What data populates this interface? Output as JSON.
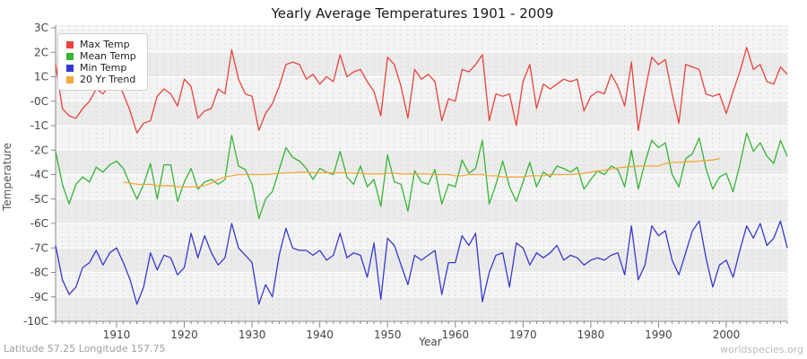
{
  "chart": {
    "title": "Yearly Average Temperatures 1901 - 2009",
    "y_axis_title": "Temperature",
    "x_axis_title": "Year",
    "footer_left": "Latitude 57.25 Longitude 157.75",
    "footer_right": "worldspecies.org"
  },
  "legend": {
    "items": [
      {
        "label": "Max Temp",
        "color": "#e8433c"
      },
      {
        "label": "Mean Temp",
        "color": "#36b436"
      },
      {
        "label": "Min Temp",
        "color": "#3838cf"
      },
      {
        "label": "20 Yr Trend",
        "color": "#f5a73e"
      }
    ]
  },
  "chart_data": {
    "type": "line",
    "title": "Yearly Average Temperatures 1901 - 2009",
    "xlabel": "Year",
    "ylabel": "Temperature",
    "x_range": [
      1901,
      2009
    ],
    "y_tick_labels": [
      "3C",
      "2C",
      "1C",
      "-0C",
      "-1C",
      "-2C",
      "-4C",
      "-5C",
      "-6C",
      "-7C",
      "-8C",
      "-9C",
      "-10C"
    ],
    "y_tick_values": [
      3,
      2,
      1,
      0,
      -1,
      -2,
      -4,
      -5,
      -6,
      -7,
      -8,
      -9,
      -10
    ],
    "x_tick_labels": [
      "1910",
      "1920",
      "1930",
      "1940",
      "1950",
      "1960",
      "1970",
      "1980",
      "1990",
      "2000"
    ],
    "grid": true,
    "legend_position": "top-left",
    "years": [
      1901,
      1902,
      1903,
      1904,
      1905,
      1906,
      1907,
      1908,
      1909,
      1910,
      1911,
      1912,
      1913,
      1914,
      1915,
      1916,
      1917,
      1918,
      1919,
      1920,
      1921,
      1922,
      1923,
      1924,
      1925,
      1926,
      1927,
      1928,
      1929,
      1930,
      1931,
      1932,
      1933,
      1934,
      1935,
      1936,
      1937,
      1938,
      1939,
      1940,
      1941,
      1942,
      1943,
      1944,
      1945,
      1946,
      1947,
      1948,
      1949,
      1950,
      1951,
      1952,
      1953,
      1954,
      1955,
      1956,
      1957,
      1958,
      1959,
      1960,
      1961,
      1962,
      1963,
      1964,
      1965,
      1966,
      1967,
      1968,
      1969,
      1970,
      1971,
      1972,
      1973,
      1974,
      1975,
      1976,
      1977,
      1978,
      1979,
      1980,
      1981,
      1982,
      1983,
      1984,
      1985,
      1986,
      1987,
      1988,
      1989,
      1990,
      1991,
      1992,
      1993,
      1994,
      1995,
      1996,
      1997,
      1998,
      1999,
      2000,
      2001,
      2002,
      2003,
      2004,
      2005,
      2006,
      2007,
      2008,
      2009
    ],
    "series": [
      {
        "name": "Max Temp",
        "color": "#e8433c",
        "values": [
          1.5,
          -0.3,
          -0.6,
          -0.7,
          -0.3,
          0.0,
          0.5,
          0.3,
          0.7,
          0.9,
          0.3,
          -0.4,
          -1.3,
          -0.9,
          -0.8,
          0.2,
          0.5,
          0.3,
          -0.2,
          0.9,
          0.6,
          -0.7,
          -0.4,
          -0.3,
          0.5,
          0.3,
          2.1,
          0.9,
          0.3,
          0.2,
          -1.2,
          -0.5,
          -0.1,
          0.6,
          1.5,
          1.6,
          1.5,
          0.9,
          1.1,
          0.7,
          1.0,
          0.8,
          1.9,
          1.0,
          1.2,
          1.3,
          0.8,
          0.4,
          -0.6,
          1.8,
          1.5,
          0.6,
          -0.7,
          1.3,
          0.9,
          1.1,
          0.8,
          -0.8,
          0.1,
          0.0,
          1.3,
          1.2,
          1.5,
          1.9,
          -0.8,
          0.3,
          0.2,
          0.3,
          -1.0,
          0.8,
          1.5,
          -0.3,
          0.7,
          0.5,
          0.7,
          0.9,
          0.8,
          0.9,
          -0.4,
          0.2,
          0.4,
          0.3,
          1.1,
          0.6,
          -0.2,
          1.6,
          -1.2,
          0.4,
          1.8,
          1.5,
          1.7,
          0.3,
          -0.9,
          1.5,
          1.4,
          1.3,
          0.3,
          0.2,
          0.3,
          -0.5,
          0.4,
          1.2,
          2.2,
          1.3,
          1.5,
          0.8,
          0.7,
          1.4,
          1.1
        ]
      },
      {
        "name": "Mean Temp",
        "color": "#36b436",
        "values": [
          -2.1,
          -4.4,
          -5.2,
          -4.4,
          -4.1,
          -4.3,
          -3.4,
          -3.8,
          -3.2,
          -2.9,
          -3.5,
          -4.4,
          -5.0,
          -4.4,
          -3.1,
          -5.0,
          -3.2,
          -3.2,
          -5.1,
          -4.3,
          -3.5,
          -4.6,
          -4.3,
          -4.2,
          -4.4,
          -4.2,
          -1.4,
          -3.3,
          -3.6,
          -4.4,
          -5.8,
          -5.0,
          -4.7,
          -3.6,
          -1.9,
          -2.6,
          -2.9,
          -3.5,
          -4.2,
          -3.5,
          -3.8,
          -4.0,
          -2.1,
          -4.1,
          -4.4,
          -3.3,
          -4.5,
          -4.2,
          -5.3,
          -2.4,
          -4.3,
          -4.4,
          -5.5,
          -3.7,
          -4.3,
          -4.4,
          -3.6,
          -5.2,
          -4.4,
          -4.5,
          -2.8,
          -3.9,
          -3.5,
          -1.6,
          -5.2,
          -4.4,
          -2.9,
          -4.5,
          -5.1,
          -4.3,
          -3.0,
          -4.5,
          -3.8,
          -4.1,
          -3.3,
          -3.5,
          -3.8,
          -3.4,
          -4.6,
          -4.2,
          -3.7,
          -4.0,
          -3.3,
          -3.6,
          -4.5,
          -2.0,
          -4.6,
          -3.0,
          -1.6,
          -1.9,
          -1.7,
          -4.0,
          -4.5,
          -2.7,
          -2.3,
          -1.5,
          -3.5,
          -4.6,
          -4.1,
          -3.9,
          -4.7,
          -3.2,
          -1.3,
          -2.1,
          -1.7,
          -2.5,
          -3.1,
          -1.6,
          -2.5
        ]
      },
      {
        "name": "Min Temp",
        "color": "#3838cf",
        "values": [
          -6.9,
          -8.3,
          -8.9,
          -8.6,
          -7.8,
          -7.6,
          -7.1,
          -7.7,
          -7.2,
          -7.0,
          -7.6,
          -8.3,
          -9.3,
          -8.6,
          -7.2,
          -7.9,
          -7.3,
          -7.4,
          -8.1,
          -7.8,
          -6.4,
          -7.4,
          -6.5,
          -7.2,
          -7.7,
          -7.4,
          -6.0,
          -7.0,
          -7.3,
          -7.6,
          -9.3,
          -8.5,
          -9.0,
          -7.3,
          -6.2,
          -7.0,
          -7.1,
          -7.1,
          -7.3,
          -7.1,
          -7.5,
          -7.3,
          -6.4,
          -7.4,
          -7.2,
          -7.3,
          -8.2,
          -6.8,
          -9.1,
          -6.6,
          -6.9,
          -7.7,
          -8.5,
          -7.3,
          -7.5,
          -7.3,
          -7.1,
          -8.9,
          -7.6,
          -7.6,
          -6.5,
          -6.9,
          -6.4,
          -9.2,
          -8.0,
          -7.3,
          -7.2,
          -8.6,
          -6.8,
          -7.0,
          -7.7,
          -7.2,
          -7.4,
          -7.2,
          -6.9,
          -7.5,
          -7.3,
          -7.4,
          -7.7,
          -7.5,
          -7.4,
          -7.5,
          -7.3,
          -7.2,
          -8.1,
          -6.1,
          -8.3,
          -7.7,
          -6.1,
          -6.5,
          -6.3,
          -7.5,
          -8.1,
          -7.2,
          -6.3,
          -5.9,
          -7.4,
          -8.6,
          -7.7,
          -7.5,
          -8.2,
          -7.1,
          -6.1,
          -6.6,
          -6.0,
          -6.9,
          -6.6,
          -5.9,
          -7.0
        ]
      },
      {
        "name": "20 Yr Trend",
        "color": "#f5a73e",
        "start_year": 1911,
        "values": [
          -4.3,
          -4.35,
          -4.4,
          -4.4,
          -4.4,
          -4.45,
          -4.45,
          -4.45,
          -4.5,
          -4.5,
          -4.5,
          -4.5,
          -4.45,
          -4.35,
          -4.2,
          -4.1,
          -4.05,
          -4.0,
          -4.0,
          -4.0,
          -4.0,
          -4.0,
          -3.95,
          -3.9,
          -3.85,
          -3.85,
          -3.8,
          -3.8,
          -3.85,
          -3.85,
          -3.85,
          -3.85,
          -3.85,
          -3.85,
          -3.9,
          -3.9,
          -3.95,
          -3.95,
          -3.95,
          -3.9,
          -3.9,
          -3.95,
          -3.95,
          -3.95,
          -3.95,
          -3.95,
          -4.0,
          -4.0,
          -4.0,
          -4.05,
          -4.05,
          -4.0,
          -4.0,
          -4.0,
          -4.05,
          -4.05,
          -4.1,
          -4.1,
          -4.1,
          -4.1,
          -4.05,
          -4.05,
          -4.05,
          -4.0,
          -4.0,
          -4.0,
          -4.0,
          -3.95,
          -3.9,
          -3.8,
          -3.7,
          -3.65,
          -3.55,
          -3.45,
          -3.4,
          -3.35,
          -3.3,
          -3.3,
          -3.3,
          -3.3,
          -3.1,
          -3.0,
          -3.0,
          -2.95,
          -2.95,
          -2.9,
          -2.85,
          -2.8,
          -2.7
        ]
      }
    ]
  }
}
